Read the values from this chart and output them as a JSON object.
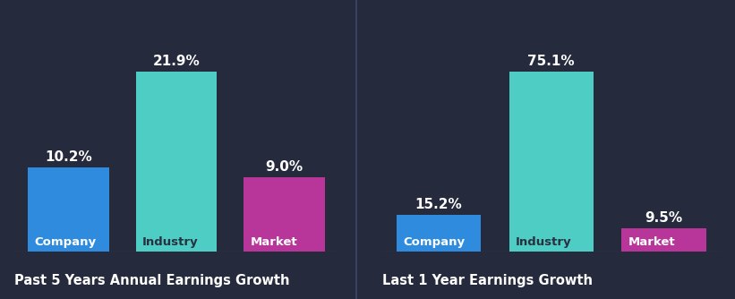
{
  "background_color": "#252a3d",
  "chart1": {
    "title": "Past 5 Years Annual Earnings Growth",
    "categories": [
      "Company",
      "Industry",
      "Market"
    ],
    "values": [
      10.2,
      21.9,
      9.0
    ],
    "colors": [
      "#2e8bde",
      "#4ecdc4",
      "#b8359a"
    ],
    "labels": [
      "10.2%",
      "21.9%",
      "9.0%"
    ],
    "cat_text_colors": [
      "#ffffff",
      "#2a3040",
      "#ffffff"
    ]
  },
  "chart2": {
    "title": "Last 1 Year Earnings Growth",
    "categories": [
      "Company",
      "Industry",
      "Market"
    ],
    "values": [
      15.2,
      75.1,
      9.5
    ],
    "colors": [
      "#2e8bde",
      "#4ecdc4",
      "#b8359a"
    ],
    "labels": [
      "15.2%",
      "75.1%",
      "9.5%"
    ],
    "cat_text_colors": [
      "#ffffff",
      "#2a3040",
      "#ffffff"
    ]
  },
  "bar_width": 0.75,
  "text_color": "#ffffff",
  "title_color": "#ffffff",
  "value_color": "#ffffff",
  "title_fontsize": 10.5,
  "value_label_fontsize": 11,
  "category_fontsize": 9.5,
  "divider_color": "#3a4060"
}
